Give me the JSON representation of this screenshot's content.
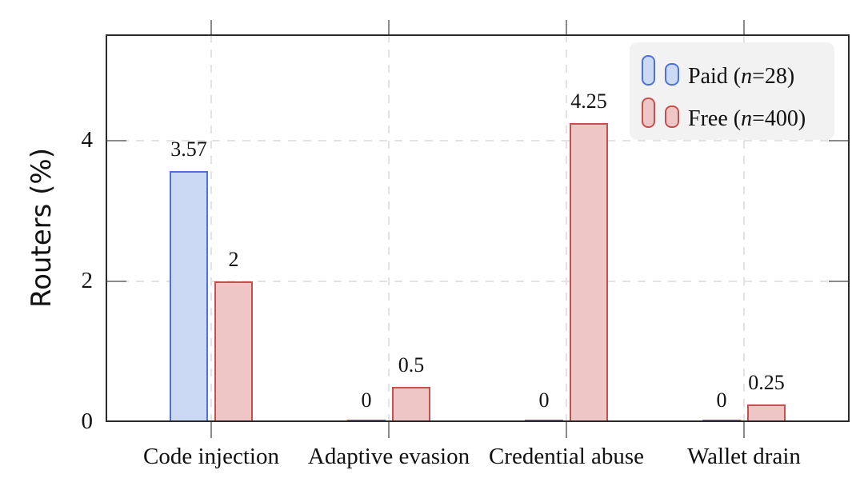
{
  "chart_data": {
    "type": "bar",
    "title": "",
    "ylabel": "Routers (%)",
    "categories": [
      "Code injection",
      "Adaptive evasion",
      "Credential abuse",
      "Wallet drain"
    ],
    "series": [
      {
        "name": "Paid (n=28)",
        "values": [
          3.57,
          0,
          0,
          0
        ],
        "value_labels": [
          "3.57",
          "0",
          "0",
          "0"
        ],
        "fill": "#ccd9f4",
        "stroke": "#4d72d4"
      },
      {
        "name": "Free (n=400)",
        "values": [
          2,
          0.5,
          4.25,
          0.25
        ],
        "value_labels": [
          "2",
          "0.5",
          "4.25",
          "0.25"
        ],
        "fill": "#edc6c5",
        "stroke": "#c5514e"
      }
    ],
    "yticks": [
      "0",
      "2",
      "4"
    ],
    "ytick_values": [
      0,
      2,
      4
    ],
    "ylim": [
      0,
      5.5
    ],
    "grid": {
      "horizontal_at": [
        2,
        4
      ],
      "vertical_at_category_centers": true,
      "style": "dashed"
    },
    "legend": {
      "position": "top-right",
      "items": [
        {
          "prefix": "Paid (",
          "italic": "n",
          "suffix": "=28)"
        },
        {
          "prefix": "Free (",
          "italic": "n",
          "suffix": "=400)"
        }
      ]
    },
    "colors": {
      "paid_fill": "#ccd9f4",
      "paid_stroke": "#4d72d4",
      "free_fill": "#edc6c5",
      "free_stroke": "#c5514e",
      "axis": "#2a2a2a",
      "gridline": "#e3e3e3",
      "tick": "#8a8a8a",
      "legend_background": "#f2f2f2",
      "text": "#111111"
    }
  }
}
